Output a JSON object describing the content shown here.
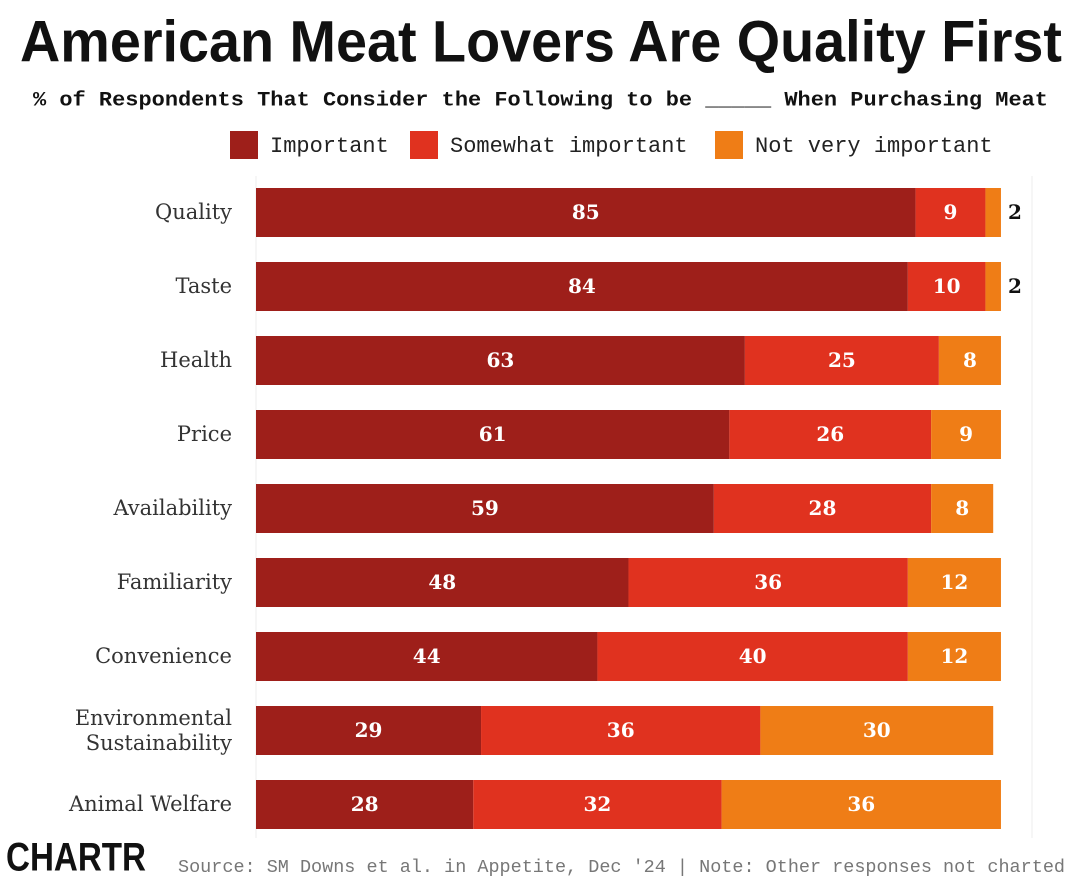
{
  "chart_data": {
    "type": "bar",
    "orientation": "horizontal",
    "stacked": true,
    "title": "American Meat Lovers Are Quality First",
    "subtitle": "% of Respondents That Consider the Following to be _____ When Purchasing Meat",
    "categories": [
      "Quality",
      "Taste",
      "Health",
      "Price",
      "Availability",
      "Familiarity",
      "Convenience",
      "Environmental Sustainability",
      "Animal Welfare"
    ],
    "series": [
      {
        "name": "Important",
        "color": "#9e1f1a",
        "values": [
          85,
          84,
          63,
          61,
          59,
          48,
          44,
          29,
          28
        ]
      },
      {
        "name": "Somewhat important",
        "color": "#e0321f",
        "values": [
          9,
          10,
          25,
          26,
          28,
          36,
          40,
          36,
          32
        ]
      },
      {
        "name": "Not very important",
        "color": "#ef7d16",
        "values": [
          2,
          2,
          8,
          9,
          8,
          12,
          12,
          30,
          36
        ]
      }
    ],
    "xlim": [
      0,
      100
    ],
    "legend": "top",
    "source": "Source: SM Downs et al. in Appetite, Dec '24 | Note: Other responses not charted",
    "logo": "CHARTR"
  }
}
